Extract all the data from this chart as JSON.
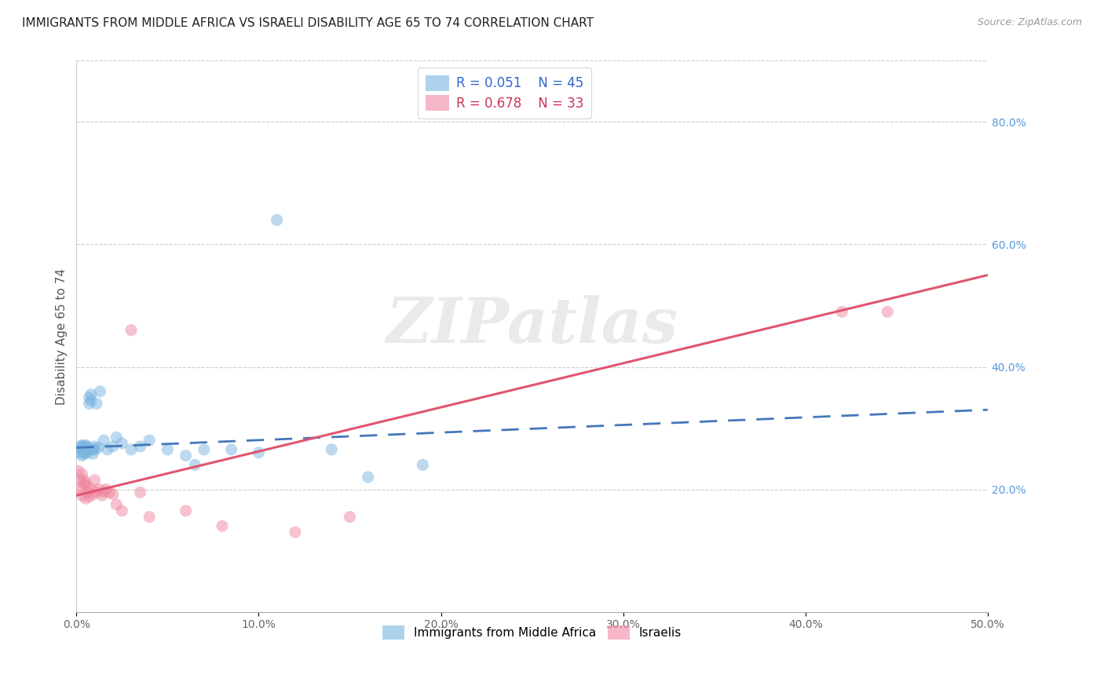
{
  "title": "IMMIGRANTS FROM MIDDLE AFRICA VS ISRAELI DISABILITY AGE 65 TO 74 CORRELATION CHART",
  "source": "Source: ZipAtlas.com",
  "ylabel": "Disability Age 65 to 74",
  "x_tick_labels": [
    "0.0%",
    "10.0%",
    "20.0%",
    "30.0%",
    "40.0%",
    "50.0%"
  ],
  "x_tick_values": [
    0.0,
    0.1,
    0.2,
    0.3,
    0.4,
    0.5
  ],
  "y_tick_labels_right": [
    "20.0%",
    "40.0%",
    "60.0%",
    "80.0%"
  ],
  "y_tick_values": [
    0.2,
    0.4,
    0.6,
    0.8
  ],
  "xlim": [
    0.0,
    0.5
  ],
  "ylim": [
    0.0,
    0.9
  ],
  "series1_label": "Immigrants from Middle Africa",
  "series2_label": "Israelis",
  "series1_color": "#7ab5e0",
  "series2_color": "#f087a0",
  "series1_R": 0.051,
  "series1_N": 45,
  "series2_R": 0.678,
  "series2_N": 33,
  "blue_line_color": "#4477bb",
  "pink_line_color": "#e05570",
  "blue_line_style": "--",
  "pink_line_style": "-",
  "series1_x": [
    0.001,
    0.002,
    0.002,
    0.003,
    0.003,
    0.003,
    0.004,
    0.004,
    0.004,
    0.005,
    0.005,
    0.005,
    0.005,
    0.006,
    0.006,
    0.006,
    0.007,
    0.007,
    0.008,
    0.008,
    0.009,
    0.009,
    0.01,
    0.01,
    0.011,
    0.012,
    0.013,
    0.015,
    0.017,
    0.02,
    0.022,
    0.025,
    0.03,
    0.035,
    0.04,
    0.05,
    0.06,
    0.065,
    0.07,
    0.085,
    0.1,
    0.11,
    0.14,
    0.16,
    0.19
  ],
  "series1_y": [
    0.265,
    0.27,
    0.26,
    0.255,
    0.268,
    0.272,
    0.258,
    0.263,
    0.27,
    0.265,
    0.268,
    0.26,
    0.272,
    0.265,
    0.27,
    0.26,
    0.35,
    0.34,
    0.355,
    0.345,
    0.265,
    0.258,
    0.27,
    0.265,
    0.34,
    0.268,
    0.36,
    0.28,
    0.265,
    0.27,
    0.285,
    0.275,
    0.265,
    0.27,
    0.28,
    0.265,
    0.255,
    0.24,
    0.265,
    0.265,
    0.26,
    0.64,
    0.265,
    0.22,
    0.24
  ],
  "series2_x": [
    0.001,
    0.002,
    0.002,
    0.003,
    0.003,
    0.004,
    0.004,
    0.005,
    0.005,
    0.006,
    0.006,
    0.007,
    0.008,
    0.009,
    0.01,
    0.011,
    0.012,
    0.014,
    0.015,
    0.016,
    0.018,
    0.02,
    0.022,
    0.025,
    0.03,
    0.035,
    0.04,
    0.06,
    0.08,
    0.12,
    0.15,
    0.42,
    0.445
  ],
  "series2_y": [
    0.23,
    0.2,
    0.215,
    0.19,
    0.225,
    0.208,
    0.215,
    0.185,
    0.21,
    0.195,
    0.205,
    0.188,
    0.2,
    0.192,
    0.215,
    0.195,
    0.2,
    0.19,
    0.196,
    0.2,
    0.195,
    0.192,
    0.175,
    0.165,
    0.46,
    0.195,
    0.155,
    0.165,
    0.14,
    0.13,
    0.155,
    0.49,
    0.49
  ],
  "watermark_text": "ZIPatlas",
  "background_color": "#ffffff",
  "grid_color": "#cccccc",
  "title_fontsize": 11,
  "axis_label_fontsize": 11,
  "tick_fontsize": 10,
  "legend1_R": "R = 0.051",
  "legend1_N": "N = 45",
  "legend2_R": "R = 0.678",
  "legend2_N": "N = 33"
}
